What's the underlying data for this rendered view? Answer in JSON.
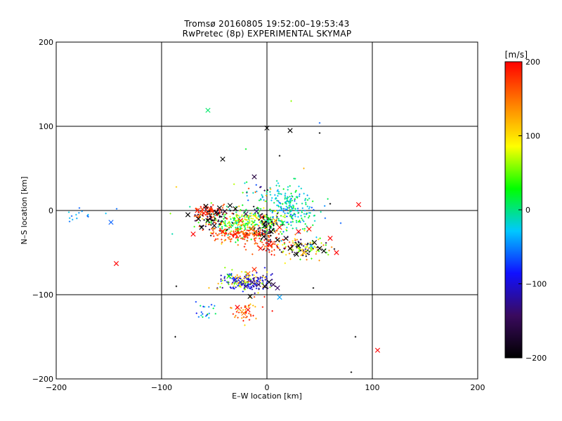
{
  "chart_data": {
    "type": "scatter",
    "title": "Tromsø 20160805 19:52:00–19:53:43",
    "subtitle": "RwPretec (8p) EXPERIMENTAL SKYMAP",
    "xlabel": "E–W location [km]",
    "ylabel": "N–S location [km]",
    "xlim": [
      -200,
      200
    ],
    "ylim": [
      -200,
      200
    ],
    "x_ticks": [
      -200,
      -100,
      0,
      100,
      200
    ],
    "y_ticks": [
      -200,
      -100,
      0,
      100,
      200
    ],
    "grid": true,
    "colorbar": {
      "label": "[m/s]",
      "range": [
        -200,
        200
      ],
      "ticks": [
        200,
        100,
        0,
        -100,
        -200
      ],
      "stops": [
        "#000000",
        "#3a0a5e",
        "#1010ff",
        "#00c8ff",
        "#00ff00",
        "#ffff00",
        "#ff8000",
        "#ff0000"
      ]
    },
    "markers_cross": [
      {
        "x": -56,
        "y": 119,
        "v": 5
      },
      {
        "x": 0,
        "y": 98,
        "v": -200
      },
      {
        "x": 22,
        "y": 95,
        "v": -200
      },
      {
        "x": -42,
        "y": 61,
        "v": -200
      },
      {
        "x": -12,
        "y": 40,
        "v": -160
      },
      {
        "x": -148,
        "y": -14,
        "v": -60
      },
      {
        "x": -143,
        "y": -63,
        "v": 200
      },
      {
        "x": 87,
        "y": 7,
        "v": 200
      },
      {
        "x": 105,
        "y": -166,
        "v": 200
      },
      {
        "x": -60,
        "y": -3,
        "v": 190
      },
      {
        "x": -54,
        "y": 2,
        "v": 180
      },
      {
        "x": -48,
        "y": -2,
        "v": -200
      },
      {
        "x": -45,
        "y": 3,
        "v": -200
      },
      {
        "x": -40,
        "y": -1,
        "v": -170
      },
      {
        "x": -30,
        "y": 2,
        "v": -200
      },
      {
        "x": -20,
        "y": -4,
        "v": -150
      },
      {
        "x": -10,
        "y": -1,
        "v": -130
      },
      {
        "x": -5,
        "y": -8,
        "v": 190
      },
      {
        "x": 2,
        "y": -10,
        "v": 20
      },
      {
        "x": 8,
        "y": -12,
        "v": 130
      },
      {
        "x": 15,
        "y": -15,
        "v": 10
      },
      {
        "x": -56,
        "y": -12,
        "v": -200
      },
      {
        "x": -50,
        "y": -18,
        "v": -190
      },
      {
        "x": -42,
        "y": -25,
        "v": 190
      },
      {
        "x": -30,
        "y": -28,
        "v": 200
      },
      {
        "x": -20,
        "y": -30,
        "v": 180
      },
      {
        "x": -8,
        "y": -28,
        "v": 190
      },
      {
        "x": 4,
        "y": -25,
        "v": -200
      },
      {
        "x": 10,
        "y": -35,
        "v": -200
      },
      {
        "x": 18,
        "y": -33,
        "v": -180
      },
      {
        "x": 2,
        "y": -40,
        "v": 200
      },
      {
        "x": -6,
        "y": -45,
        "v": 190
      },
      {
        "x": 22,
        "y": -45,
        "v": -200
      },
      {
        "x": 30,
        "y": -42,
        "v": -200
      },
      {
        "x": 35,
        "y": -50,
        "v": 120
      },
      {
        "x": 42,
        "y": -42,
        "v": -30
      },
      {
        "x": 50,
        "y": -45,
        "v": -200
      },
      {
        "x": 54,
        "y": -48,
        "v": -200
      },
      {
        "x": 60,
        "y": -33,
        "v": 200
      },
      {
        "x": 66,
        "y": -50,
        "v": 200
      },
      {
        "x": 30,
        "y": -25,
        "v": 200
      },
      {
        "x": -65,
        "y": -10,
        "v": -200
      },
      {
        "x": -58,
        "y": 5,
        "v": -200
      },
      {
        "x": -35,
        "y": 6,
        "v": -200
      },
      {
        "x": -25,
        "y": -12,
        "v": 190
      },
      {
        "x": -15,
        "y": -22,
        "v": 170
      },
      {
        "x": -2,
        "y": -18,
        "v": -200
      },
      {
        "x": 12,
        "y": -20,
        "v": 190
      },
      {
        "x": -3,
        "y": -31,
        "v": -200
      },
      {
        "x": -62,
        "y": -20,
        "v": -200
      },
      {
        "x": -30,
        "y": -82,
        "v": -80
      },
      {
        "x": -25,
        "y": -85,
        "v": -100
      },
      {
        "x": -20,
        "y": -90,
        "v": -120
      },
      {
        "x": -14,
        "y": -85,
        "v": -130
      },
      {
        "x": -8,
        "y": -88,
        "v": -140
      },
      {
        "x": -2,
        "y": -90,
        "v": -200
      },
      {
        "x": 2,
        "y": -85,
        "v": -200
      },
      {
        "x": 6,
        "y": -88,
        "v": -160
      },
      {
        "x": 10,
        "y": -92,
        "v": -140
      },
      {
        "x": -36,
        "y": -78,
        "v": 30
      },
      {
        "x": -18,
        "y": -75,
        "v": 150
      },
      {
        "x": -12,
        "y": -70,
        "v": 180
      },
      {
        "x": -16,
        "y": -102,
        "v": -200
      },
      {
        "x": -28,
        "y": -115,
        "v": 200
      },
      {
        "x": -18,
        "y": -118,
        "v": 200
      },
      {
        "x": -22,
        "y": -122,
        "v": 150
      },
      {
        "x": 12,
        "y": -103,
        "v": -40
      },
      {
        "x": -75,
        "y": -5,
        "v": -200
      },
      {
        "x": -66,
        "y": 0,
        "v": 190
      },
      {
        "x": 40,
        "y": -22,
        "v": 190
      },
      {
        "x": 45,
        "y": -38,
        "v": -200
      },
      {
        "x": 28,
        "y": -52,
        "v": -200
      },
      {
        "x": -70,
        "y": -28,
        "v": 200
      }
    ],
    "clusters": [
      {
        "cx": -22,
        "cy": -14,
        "sx": 20,
        "sy": 9,
        "n": 330,
        "vmin": -20,
        "vmax": 120
      },
      {
        "cx": 22,
        "cy": 0,
        "sx": 14,
        "sy": 12,
        "n": 160,
        "vmin": -70,
        "vmax": 30
      },
      {
        "cx": -55,
        "cy": -2,
        "sx": 8,
        "sy": 5,
        "n": 90,
        "vmin": 150,
        "vmax": 200
      },
      {
        "cx": -50,
        "cy": -10,
        "sx": 10,
        "sy": 7,
        "n": 60,
        "vmin": -200,
        "vmax": -140
      },
      {
        "cx": -25,
        "cy": -28,
        "sx": 16,
        "sy": 4,
        "n": 150,
        "vmin": 140,
        "vmax": 200
      },
      {
        "cx": 0,
        "cy": -20,
        "sx": 6,
        "sy": 10,
        "n": 70,
        "vmin": -200,
        "vmax": -150
      },
      {
        "cx": 35,
        "cy": -45,
        "sx": 14,
        "sy": 6,
        "n": 90,
        "vmin": 30,
        "vmax": 150
      },
      {
        "cx": 35,
        "cy": -45,
        "sx": 14,
        "sy": 6,
        "n": 40,
        "vmin": -200,
        "vmax": -130
      },
      {
        "cx": 5,
        "cy": -40,
        "sx": 10,
        "sy": 5,
        "n": 50,
        "vmin": 150,
        "vmax": 200
      },
      {
        "cx": -18,
        "cy": -85,
        "sx": 12,
        "sy": 5,
        "n": 140,
        "vmin": -140,
        "vmax": -70
      },
      {
        "cx": -25,
        "cy": -85,
        "sx": 10,
        "sy": 6,
        "n": 70,
        "vmin": 40,
        "vmax": 140
      },
      {
        "cx": -20,
        "cy": -120,
        "sx": 8,
        "sy": 10,
        "n": 45,
        "vmin": 100,
        "vmax": 200
      },
      {
        "cx": -60,
        "cy": -120,
        "sx": 5,
        "sy": 6,
        "n": 20,
        "vmin": -90,
        "vmax": 40
      },
      {
        "cx": -165,
        "cy": -5,
        "sx": 14,
        "sy": 4,
        "n": 14,
        "vmin": -60,
        "vmax": -20
      },
      {
        "cx": 15,
        "cy": 15,
        "sx": 12,
        "sy": 8,
        "n": 60,
        "vmin": -40,
        "vmax": 20
      },
      {
        "cx": -10,
        "cy": 25,
        "sx": 8,
        "sy": 6,
        "n": 18,
        "vmin": -200,
        "vmax": 200
      }
    ],
    "sparse_points": [
      {
        "x": 23,
        "y": 130,
        "v": 60
      },
      {
        "x": 50,
        "y": 104,
        "v": -60
      },
      {
        "x": 50,
        "y": 92,
        "v": -200
      },
      {
        "x": 12,
        "y": 65,
        "v": -200
      },
      {
        "x": -20,
        "y": 73,
        "v": 20
      },
      {
        "x": -86,
        "y": 28,
        "v": 110
      },
      {
        "x": -178,
        "y": 3,
        "v": -60
      },
      {
        "x": 84,
        "y": -150,
        "v": -200
      },
      {
        "x": -87,
        "y": -150,
        "v": -200
      },
      {
        "x": 80,
        "y": -192,
        "v": -200
      },
      {
        "x": -86,
        "y": -90,
        "v": -200
      },
      {
        "x": 44,
        "y": -92,
        "v": -200
      },
      {
        "x": 60,
        "y": 8,
        "v": -200
      },
      {
        "x": 70,
        "y": -15,
        "v": -60
      },
      {
        "x": 35,
        "y": 50,
        "v": 120
      },
      {
        "x": 20,
        "y": 28,
        "v": -20
      }
    ]
  }
}
